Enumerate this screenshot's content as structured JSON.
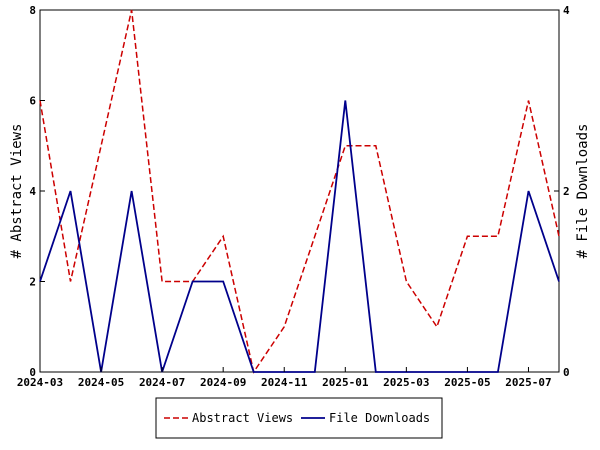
{
  "chart_data": {
    "type": "line",
    "x": [
      "2024-03",
      "2024-04",
      "2024-05",
      "2024-06",
      "2024-07",
      "2024-08",
      "2024-09",
      "2024-10",
      "2024-11",
      "2024-12",
      "2025-01",
      "2025-02",
      "2025-03",
      "2025-04",
      "2025-05",
      "2025-06",
      "2025-07",
      "2025-08"
    ],
    "x_tick_labels": [
      "2024-03",
      "2024-05",
      "2024-07",
      "2024-09",
      "2024-11",
      "2025-01",
      "2025-03",
      "2025-05",
      "2025-07"
    ],
    "series": [
      {
        "name": "Abstract Views",
        "axis": "left",
        "color": "#cc0000",
        "dash": "dashed",
        "values": [
          6,
          2,
          5,
          8,
          2,
          2,
          3,
          0,
          1,
          3,
          5,
          5,
          2,
          1,
          3,
          3,
          6,
          3
        ]
      },
      {
        "name": "File Downloads",
        "axis": "right",
        "color": "#00008b",
        "dash": "solid",
        "values": [
          1,
          2,
          0,
          2,
          0,
          1,
          1,
          0,
          0,
          0,
          3,
          0,
          0,
          0,
          0,
          0,
          2,
          1
        ]
      }
    ],
    "ylabel": "# Abstract Views",
    "y2label": "# File Downloads",
    "ylim": [
      0,
      8
    ],
    "y2lim": [
      0,
      4
    ],
    "y_ticks": [
      "0",
      "2",
      "4",
      "6",
      "8"
    ],
    "y2_ticks": [
      "0",
      "2",
      "4"
    ],
    "grid": false,
    "legend": "bottom-center"
  }
}
